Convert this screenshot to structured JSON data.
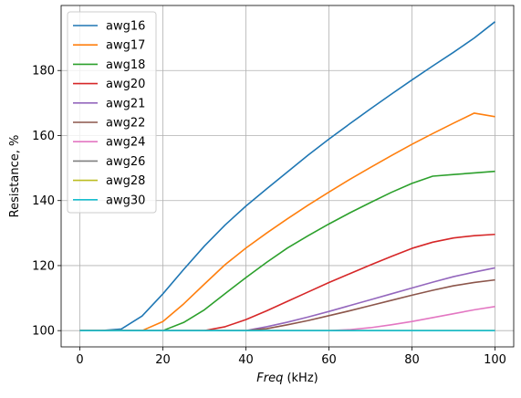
{
  "chart_data": {
    "type": "line",
    "title": "",
    "xlabel_italic": "Freq",
    "xlabel_rest": " (kHz)",
    "ylabel": "Resistance, %",
    "xlim": [
      -4.5,
      104.5
    ],
    "ylim": [
      95,
      200
    ],
    "xticks": [
      0,
      20,
      40,
      60,
      80,
      100
    ],
    "yticks": [
      100,
      120,
      140,
      160,
      180
    ],
    "grid": true,
    "legend_position": "top-left",
    "x": [
      0,
      5,
      10,
      15,
      20,
      25,
      30,
      35,
      40,
      45,
      50,
      55,
      60,
      65,
      70,
      75,
      80,
      85,
      90,
      95,
      100
    ],
    "series": [
      {
        "name": "awg16",
        "color": "#1f77b4",
        "values": [
          100,
          100,
          100.5,
          104.5,
          111.3,
          118.8,
          126,
          132.5,
          138.3,
          143.6,
          148.8,
          154,
          158.9,
          163.6,
          168.2,
          172.7,
          177.1,
          181.4,
          185.6,
          190,
          195
        ]
      },
      {
        "name": "awg17",
        "color": "#ff7f0e",
        "values": [
          100,
          100,
          100,
          100,
          102.8,
          108.2,
          114.3,
          120.3,
          125.4,
          130,
          134.4,
          138.6,
          142.6,
          146.5,
          150.2,
          153.8,
          157.3,
          160.6,
          163.8,
          166.9,
          165.8
        ]
      },
      {
        "name": "awg18",
        "color": "#2ca02c",
        "values": [
          100,
          100,
          100,
          100,
          100,
          102.5,
          106.4,
          111.4,
          116.3,
          121,
          125.4,
          129.2,
          132.8,
          136.2,
          139.4,
          142.5,
          145.3,
          147.5,
          148,
          148.5,
          149
        ]
      },
      {
        "name": "awg20",
        "color": "#d62728",
        "values": [
          100,
          100,
          100,
          100,
          100,
          100,
          100,
          101.2,
          103.4,
          106.1,
          109,
          111.9,
          114.8,
          117.5,
          120.2,
          122.8,
          125.3,
          127.2,
          128.5,
          129.2,
          129.6
        ]
      },
      {
        "name": "awg21",
        "color": "#9467bd",
        "values": [
          100,
          100,
          100,
          100,
          100,
          100,
          100,
          100,
          100,
          101.2,
          102.6,
          104.2,
          105.9,
          107.7,
          109.5,
          111.3,
          113.1,
          114.9,
          116.6,
          118,
          119.3
        ]
      },
      {
        "name": "awg22",
        "color": "#8c564b",
        "values": [
          100,
          100,
          100,
          100,
          100,
          100,
          100,
          100,
          100,
          100.6,
          101.8,
          103.1,
          104.6,
          106.1,
          107.7,
          109.3,
          110.9,
          112.4,
          113.8,
          114.8,
          115.6
        ]
      },
      {
        "name": "awg24",
        "color": "#e377c2",
        "values": [
          100,
          100,
          100,
          100,
          100,
          100,
          100,
          100,
          100,
          100,
          100,
          100,
          100,
          100.3,
          100.9,
          101.8,
          102.8,
          104,
          105.2,
          106.4,
          107.4
        ]
      },
      {
        "name": "awg26",
        "color": "#7f7f7f",
        "values": [
          100,
          100,
          100,
          100,
          100,
          100,
          100,
          100,
          100,
          100,
          100,
          100,
          100,
          100,
          100,
          100,
          100,
          100,
          100,
          100,
          100
        ]
      },
      {
        "name": "awg28",
        "color": "#bcbd22",
        "values": [
          100,
          100,
          100,
          100,
          100,
          100,
          100,
          100,
          100,
          100,
          100,
          100,
          100,
          100,
          100,
          100,
          100,
          100,
          100,
          100,
          100
        ]
      },
      {
        "name": "awg30",
        "color": "#17becf",
        "values": [
          100,
          100,
          100,
          100,
          100,
          100,
          100,
          100,
          100,
          100,
          100,
          100,
          100,
          100,
          100,
          100,
          100,
          100,
          100,
          100,
          100
        ]
      }
    ]
  }
}
